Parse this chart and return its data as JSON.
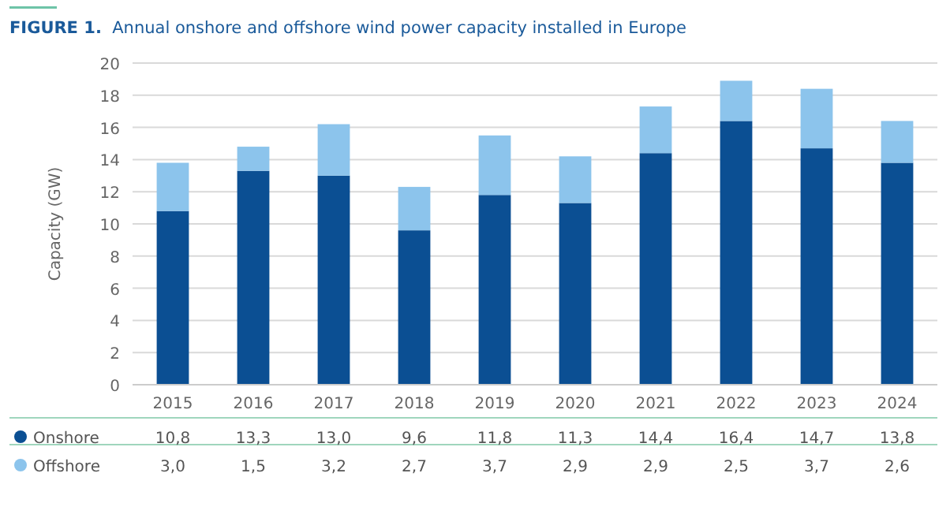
{
  "chart_data": {
    "type": "bar",
    "title": "FIGURE 1.  Annual onshore and offshore wind power capacity installed in Europe",
    "ylabel": "Capacity (GW)",
    "categories": [
      "2015",
      "2016",
      "2017",
      "2018",
      "2019",
      "2020",
      "2021",
      "2022",
      "2023",
      "2024"
    ],
    "stacked": true,
    "series": [
      {
        "name": "Onshore",
        "color": "#0b4f93",
        "values": [
          10.8,
          13.3,
          13.0,
          9.6,
          11.8,
          11.3,
          14.4,
          16.4,
          14.7,
          13.8
        ],
        "value_labels": [
          "10,8",
          "13,3",
          "13,0",
          "9,6",
          "11,8",
          "11,3",
          "14,4",
          "16,4",
          "14,7",
          "13,8"
        ]
      },
      {
        "name": "Offshore",
        "color": "#8cc4ec",
        "values": [
          3.0,
          1.5,
          3.2,
          2.7,
          3.7,
          2.9,
          2.9,
          2.5,
          3.7,
          2.6
        ],
        "value_labels": [
          "3,0",
          "1,5",
          "3,2",
          "2,7",
          "3,7",
          "2,9",
          "2,9",
          "2,5",
          "3,7",
          "2,6"
        ]
      }
    ],
    "ylim": [
      0,
      20
    ],
    "yticks": [
      0,
      2,
      4,
      6,
      8,
      10,
      12,
      14,
      16,
      18,
      20
    ],
    "grid": "y",
    "legend": "bottom"
  }
}
